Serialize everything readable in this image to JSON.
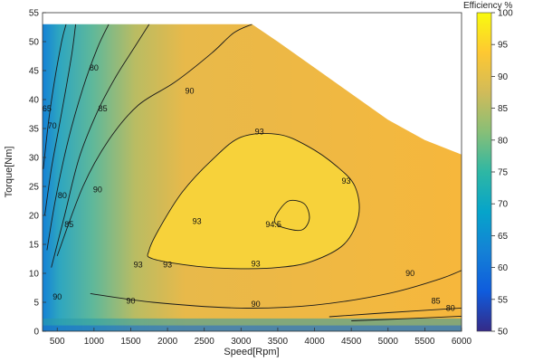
{
  "chart_data": {
    "type": "heatmap",
    "subtype": "efficiency contour map",
    "xlabel": "Speed[Rpm]",
    "ylabel": "Torque[Nm]",
    "xlim": [
      300,
      6000
    ],
    "ylim": [
      0,
      55
    ],
    "x_ticks": [
      500,
      1000,
      1500,
      2000,
      2500,
      3000,
      3500,
      4000,
      4500,
      5000,
      5500,
      6000
    ],
    "y_ticks": [
      0,
      5,
      10,
      15,
      20,
      25,
      30,
      35,
      40,
      45,
      50,
      55
    ],
    "colorbar": {
      "title": "Efficiency %",
      "range": [
        50,
        100
      ],
      "ticks": [
        50,
        55,
        60,
        65,
        70,
        75,
        80,
        85,
        90,
        95,
        100
      ],
      "colormap": "parula"
    },
    "max_torque_envelope": {
      "speed": [
        300,
        3150,
        3500,
        4000,
        4500,
        5000,
        5500,
        6000
      ],
      "torque": [
        53,
        53,
        50,
        45.5,
        41,
        36.5,
        33,
        30.5
      ]
    },
    "contours": [
      {
        "level": 94.5,
        "label": "94.5",
        "points": [
          [
            3600,
            17.8
          ],
          [
            3830,
            17.5
          ],
          [
            3930,
            19.5
          ],
          [
            3860,
            22
          ],
          [
            3650,
            22.5
          ],
          [
            3500,
            20.5
          ],
          [
            3460,
            18.8
          ]
        ],
        "label_at": [
          3440,
          18
        ]
      },
      {
        "level": 93,
        "label": "93",
        "points": [
          [
            1800,
            12.5
          ],
          [
            2400,
            11.2
          ],
          [
            3000,
            10.8
          ],
          [
            3500,
            11
          ],
          [
            3950,
            12
          ],
          [
            4400,
            15
          ],
          [
            4600,
            20
          ],
          [
            4550,
            25
          ],
          [
            4300,
            28.5
          ],
          [
            3900,
            32
          ],
          [
            3500,
            34
          ],
          [
            3000,
            33.5
          ],
          [
            2600,
            29.5
          ],
          [
            2200,
            24
          ],
          [
            1900,
            18
          ],
          [
            1750,
            14
          ]
        ],
        "label_at": [
          [
            1600,
            11
          ],
          [
            2000,
            11
          ],
          [
            2400,
            18.5
          ],
          [
            3250,
            34
          ],
          [
            3200,
            11.2
          ],
          [
            4430,
            25.5
          ]
        ]
      },
      {
        "level": 90,
        "label": "90",
        "points": [
          [
            950,
            6.5
          ],
          [
            1800,
            5
          ],
          [
            3000,
            4
          ],
          [
            4000,
            4.5
          ],
          [
            5000,
            6.5
          ],
          [
            5700,
            9
          ],
          [
            6000,
            10.5
          ]
        ],
        "label_at": [
          [
            500,
            5.5
          ],
          [
            1500,
            4.8
          ],
          [
            3200,
            4.2
          ],
          [
            5300,
            9.5
          ]
        ]
      },
      {
        "level": 90,
        "label": "90",
        "points": [
          [
            500,
            13
          ],
          [
            850,
            25
          ],
          [
            1200,
            33
          ],
          [
            1600,
            39
          ],
          [
            2100,
            43
          ],
          [
            2600,
            48
          ],
          [
            2900,
            51.5
          ],
          [
            3150,
            53
          ]
        ],
        "label_at": [
          [
            1050,
            24
          ],
          [
            2300,
            41
          ]
        ]
      },
      {
        "level": 85,
        "label": "85",
        "points": [
          [
            420,
            11
          ],
          [
            600,
            20
          ],
          [
            800,
            30
          ],
          [
            1050,
            38
          ],
          [
            1300,
            44
          ],
          [
            1550,
            49
          ],
          [
            1750,
            53
          ]
        ],
        "label_at": [
          [
            660,
            18
          ],
          [
            1120,
            38
          ]
        ]
      },
      {
        "level": 80,
        "label": "80",
        "points": [
          [
            360,
            14
          ],
          [
            480,
            23
          ],
          [
            650,
            33
          ],
          [
            850,
            42
          ],
          [
            1050,
            49
          ],
          [
            1200,
            53
          ]
        ],
        "label_at": [
          [
            570,
            23
          ],
          [
            1000,
            45
          ]
        ]
      },
      {
        "level": 70,
        "label": "70",
        "points": [
          [
            330,
            20
          ],
          [
            420,
            28
          ],
          [
            520,
            35
          ],
          [
            620,
            42
          ],
          [
            700,
            48
          ],
          [
            750,
            53
          ]
        ],
        "label_at": [
          [
            430,
            35
          ]
        ]
      },
      {
        "level": 65,
        "label": "65",
        "points": [
          [
            310,
            28
          ],
          [
            380,
            36
          ],
          [
            460,
            43
          ],
          [
            560,
            50
          ],
          [
            620,
            53
          ]
        ],
        "label_at": [
          [
            360,
            38
          ]
        ]
      },
      {
        "level": 85,
        "label": "85",
        "points": [
          [
            4200,
            2.5
          ],
          [
            5000,
            3.2
          ],
          [
            6000,
            4
          ]
        ],
        "label_at": [
          [
            5650,
            4.8
          ]
        ]
      },
      {
        "level": 80,
        "label": "80",
        "points": [
          [
            4500,
            1.8
          ],
          [
            5300,
            2.2
          ],
          [
            6000,
            2.6
          ]
        ],
        "label_at": [
          [
            5850,
            3.5
          ]
        ]
      }
    ]
  }
}
